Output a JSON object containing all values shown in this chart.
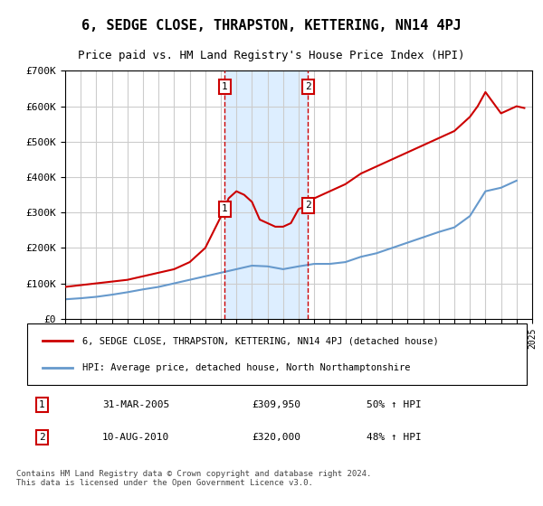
{
  "title": "6, SEDGE CLOSE, THRAPSTON, KETTERING, NN14 4PJ",
  "subtitle": "Price paid vs. HM Land Registry's House Price Index (HPI)",
  "background_color": "#ffffff",
  "plot_bg_color": "#ffffff",
  "grid_color": "#cccccc",
  "sale1_date_num": 2005.25,
  "sale2_date_num": 2010.6,
  "sale1_price": 309950,
  "sale2_price": 320000,
  "sale1_label": "1",
  "sale2_label": "2",
  "sale1_text": "31-MAR-2005",
  "sale2_text": "10-AUG-2010",
  "sale1_pct": "50% ↑ HPI",
  "sale2_pct": "48% ↑ HPI",
  "red_line_label": "6, SEDGE CLOSE, THRAPSTON, KETTERING, NN14 4PJ (detached house)",
  "blue_line_label": "HPI: Average price, detached house, North Northamptonshire",
  "footer": "Contains HM Land Registry data © Crown copyright and database right 2024.\nThis data is licensed under the Open Government Licence v3.0.",
  "xmin": 1995,
  "xmax": 2025,
  "ymin": 0,
  "ymax": 700000,
  "red_color": "#cc0000",
  "blue_color": "#6699cc",
  "shade_color": "#ddeeff",
  "marker_box_color": "#cc0000",
  "red_x": [
    1995,
    1996,
    1997,
    1998,
    1999,
    2000,
    2001,
    2002,
    2003,
    2004,
    2005.25,
    2005.5,
    2006,
    2006.5,
    2007,
    2007.5,
    2008,
    2008.5,
    2009,
    2009.5,
    2010,
    2010.6,
    2011,
    2012,
    2013,
    2014,
    2015,
    2016,
    2017,
    2018,
    2019,
    2020,
    2021,
    2021.5,
    2022,
    2022.5,
    2023,
    2023.5,
    2024,
    2024.5
  ],
  "red_y": [
    90000,
    95000,
    100000,
    105000,
    110000,
    120000,
    130000,
    140000,
    160000,
    200000,
    309950,
    340000,
    360000,
    350000,
    330000,
    280000,
    270000,
    260000,
    260000,
    270000,
    310000,
    320000,
    340000,
    360000,
    380000,
    410000,
    430000,
    450000,
    470000,
    490000,
    510000,
    530000,
    570000,
    600000,
    640000,
    610000,
    580000,
    590000,
    600000,
    595000
  ],
  "blue_x": [
    1995,
    1996,
    1997,
    1998,
    1999,
    2000,
    2001,
    2002,
    2003,
    2004,
    2005,
    2006,
    2007,
    2008,
    2009,
    2010,
    2011,
    2012,
    2013,
    2014,
    2015,
    2016,
    2017,
    2018,
    2019,
    2020,
    2021,
    2022,
    2023,
    2024
  ],
  "blue_y": [
    55000,
    58000,
    62000,
    68000,
    75000,
    83000,
    90000,
    100000,
    110000,
    120000,
    130000,
    140000,
    150000,
    148000,
    140000,
    148000,
    155000,
    155000,
    160000,
    175000,
    185000,
    200000,
    215000,
    230000,
    245000,
    258000,
    290000,
    360000,
    370000,
    390000
  ]
}
